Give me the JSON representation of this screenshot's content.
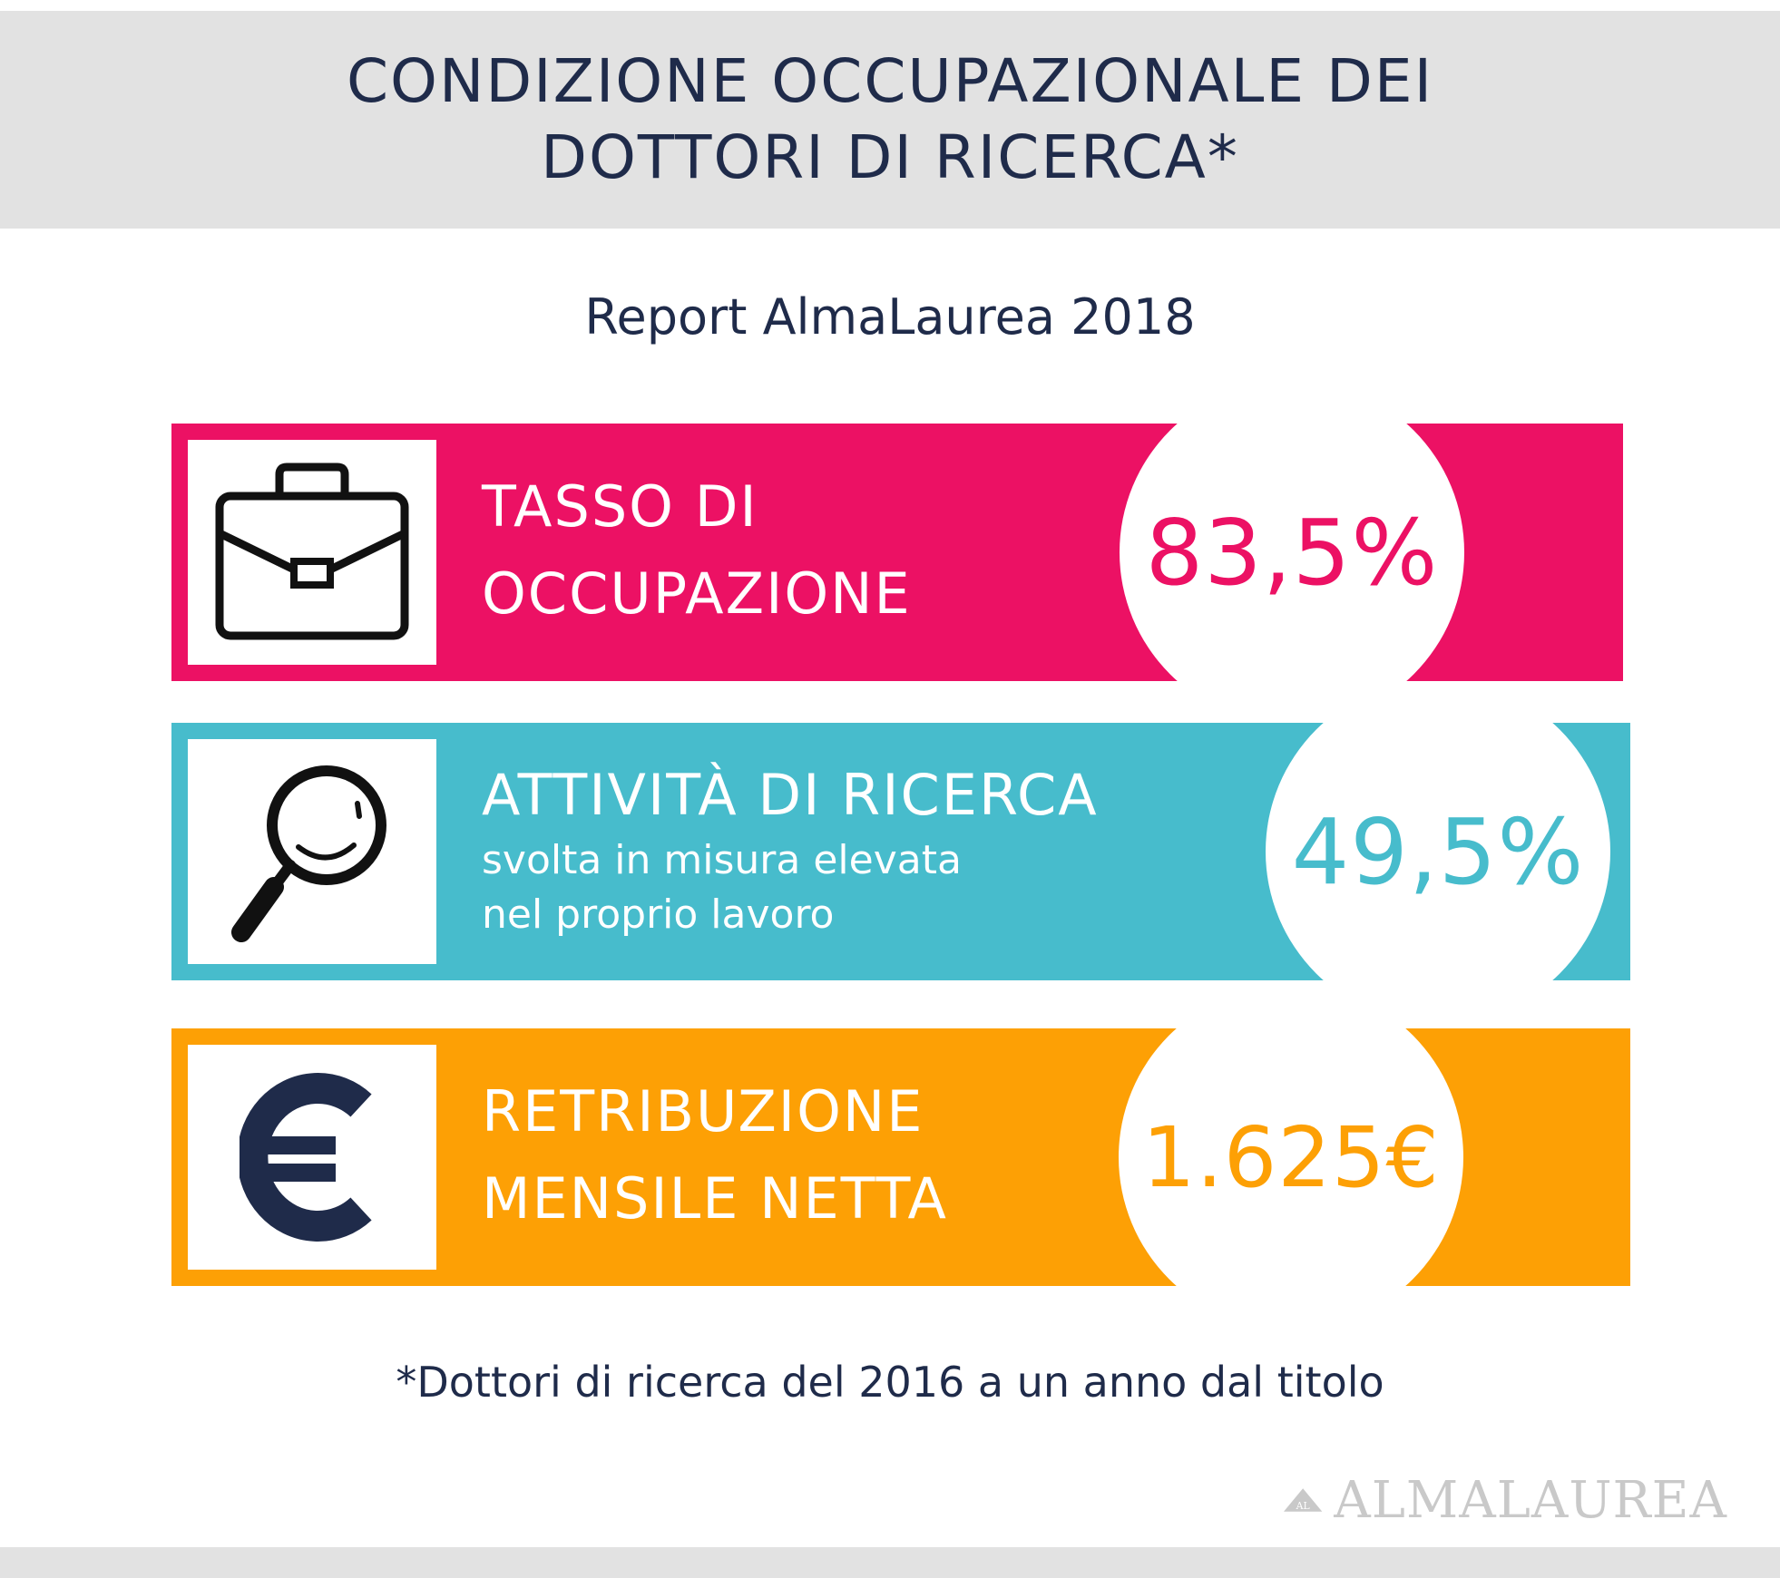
{
  "header": {
    "title_line1": "CONDIZIONE OCCUPAZIONALE DEI",
    "title_line2": "DOTTORI DI RICERCA*"
  },
  "subtitle": "Report AlmaLaurea 2018",
  "stats": [
    {
      "icon": "briefcase-icon",
      "label_line1": "TASSO DI",
      "label_line2": "OCCUPAZIONE",
      "value": "83,5%",
      "color": "#ec1164"
    },
    {
      "icon": "magnifier-icon",
      "label_title": "ATTIVITÀ DI RICERCA",
      "label_sub1": "svolta in misura elevata",
      "label_sub2": "nel proprio lavoro",
      "value": "49,5%",
      "color": "#47bccc"
    },
    {
      "icon": "euro-icon",
      "label_line1": "RETRIBUZIONE",
      "label_line2": "MENSILE NETTA",
      "value": "1.625€",
      "color": "#fda005"
    }
  ],
  "footnote": "*Dottori di ricerca del 2016 a un anno dal titolo",
  "logo": {
    "badge": "AL",
    "text": "ALMALAUREA",
    "color": "#c9c9c9"
  },
  "colors": {
    "dark_text": "#1f2b4a",
    "header_bg": "#e2e2e2"
  }
}
